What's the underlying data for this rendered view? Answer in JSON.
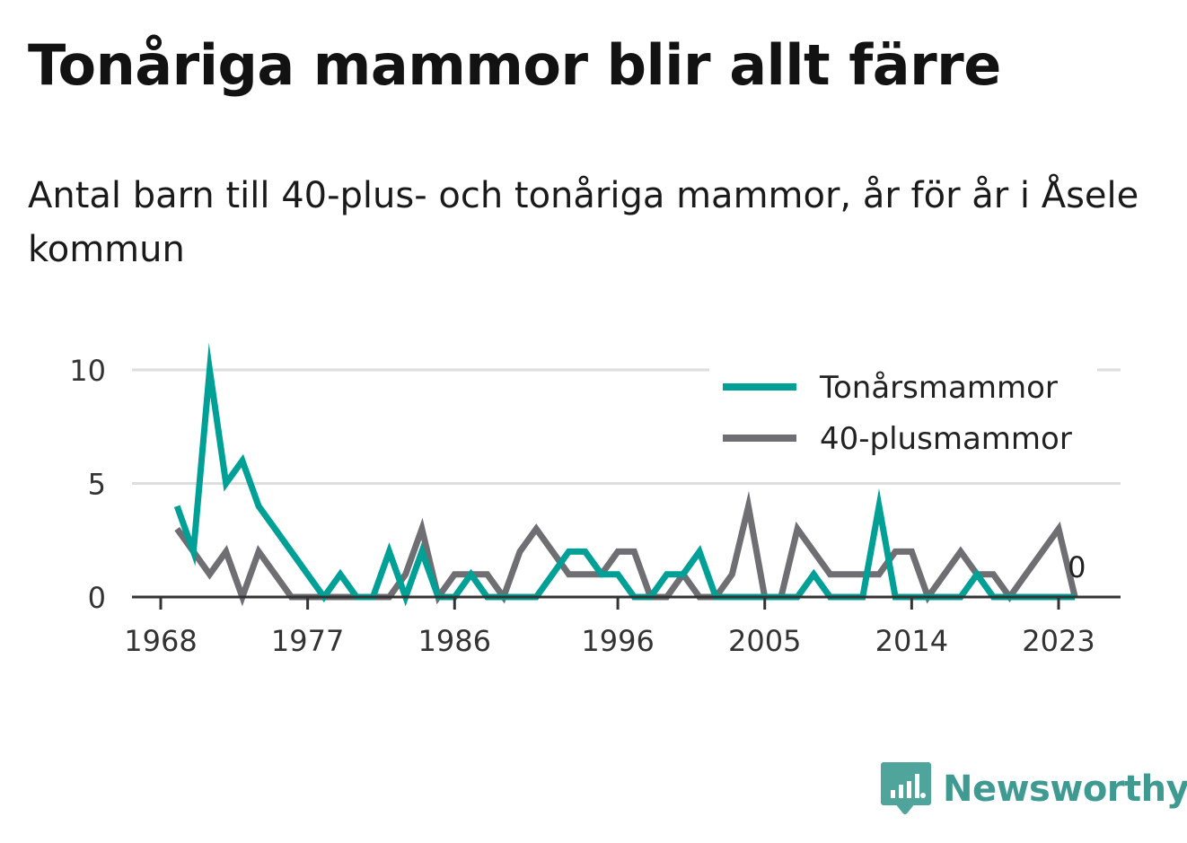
{
  "title": "Tonåriga mammor blir allt färre",
  "subtitle": "Antal barn till 40-plus- och tonåriga mammor, år för år i Åsele kommun",
  "logo_text": "Newsworthy",
  "chart_data": {
    "type": "line",
    "x": [
      1969,
      1970,
      1971,
      1972,
      1973,
      1974,
      1975,
      1976,
      1977,
      1978,
      1979,
      1980,
      1981,
      1982,
      1983,
      1984,
      1985,
      1986,
      1987,
      1988,
      1989,
      1990,
      1991,
      1992,
      1993,
      1994,
      1995,
      1996,
      1997,
      1998,
      1999,
      2000,
      2001,
      2002,
      2003,
      2004,
      2005,
      2006,
      2007,
      2008,
      2009,
      2010,
      2011,
      2012,
      2013,
      2014,
      2015,
      2016,
      2017,
      2018,
      2019,
      2020,
      2021,
      2022,
      2023,
      2024
    ],
    "series": [
      {
        "name": "Tonårsmammor",
        "color": "#00a096",
        "values": [
          4,
          2,
          10,
          5,
          6,
          4,
          3,
          2,
          1,
          0,
          1,
          0,
          0,
          2,
          0,
          2,
          0,
          0,
          1,
          0,
          0,
          0,
          0,
          1,
          2,
          2,
          1,
          1,
          0,
          0,
          1,
          1,
          2,
          0,
          0,
          0,
          0,
          0,
          0,
          1,
          0,
          0,
          0,
          4,
          0,
          0,
          0,
          0,
          0,
          1,
          0,
          0,
          0,
          0,
          0,
          0
        ]
      },
      {
        "name": "40-plusmammor",
        "color": "#6e6e73",
        "values": [
          3,
          2,
          1,
          2,
          0,
          2,
          1,
          0,
          0,
          0,
          0,
          0,
          0,
          0,
          1,
          3,
          0,
          1,
          1,
          1,
          0,
          2,
          3,
          2,
          1,
          1,
          1,
          2,
          2,
          0,
          0,
          1,
          0,
          0,
          1,
          4,
          0,
          0,
          3,
          2,
          1,
          1,
          1,
          1,
          2,
          2,
          0,
          1,
          2,
          1,
          1,
          0,
          1,
          2,
          3,
          0
        ]
      }
    ],
    "x_ticks": [
      "1968",
      "1977",
      "1986",
      "1996",
      "2005",
      "2014",
      "2023"
    ],
    "y_ticks": [
      "0",
      "5",
      "10"
    ],
    "ylim": [
      0,
      10
    ],
    "xlim": [
      1968,
      2026
    ],
    "end_label": "0",
    "grid": "horizontal",
    "legend_position": "top-right"
  }
}
